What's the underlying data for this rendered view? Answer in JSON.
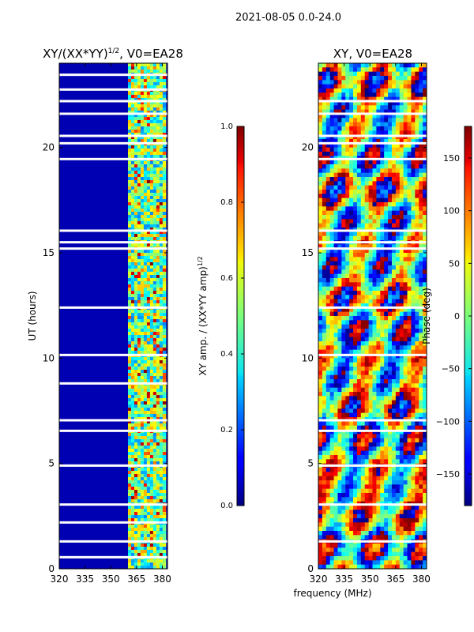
{
  "suptitle": "2021-08-05 0.0-24.0",
  "shared_xlabel": "frequency (MHz)",
  "chart_data": [
    {
      "type": "heatmap",
      "title": "XY/(XX*YY)",
      "title_superscript": "1/2",
      "title_suffix": ", V0=EA28",
      "xlabel": "",
      "ylabel": "UT (hours)",
      "xlim": [
        320,
        383
      ],
      "ylim": [
        0,
        24
      ],
      "xticks": [
        320,
        335,
        350,
        365,
        380
      ],
      "yticks": [
        0,
        5,
        10,
        15,
        20
      ],
      "colormap": "jet",
      "band_frequency_range_mhz": [
        360,
        382
      ],
      "blank_time_rows_ut": [
        0.55,
        1.3,
        2.2,
        3.05,
        4.9,
        6.55,
        7.05,
        8.8,
        10.15,
        12.4,
        15.2,
        15.5,
        16.05,
        19.45,
        20.2,
        20.55,
        21.6,
        22.2,
        22.75,
        23.45
      ],
      "colorbar": {
        "label": "XY amp. / (XX*YY amp)",
        "label_superscript": "1/2",
        "vmin": 0.0,
        "vmax": 1.0,
        "ticks": [
          "0.0",
          "0.2",
          "0.4",
          "0.6",
          "0.8",
          "1.0"
        ]
      }
    },
    {
      "type": "heatmap",
      "title": "XY, V0=EA28",
      "xlabel": "frequency (MHz)",
      "ylabel": "",
      "xlim": [
        320,
        383
      ],
      "ylim": [
        0,
        24
      ],
      "xticks": [
        320,
        335,
        350,
        365,
        380
      ],
      "yticks": [
        0,
        5,
        10,
        15,
        20
      ],
      "colormap": "jet",
      "blank_time_rows_ut": [
        1.3,
        3.05,
        4.9,
        6.55,
        7.05,
        10.15,
        12.4,
        15.2,
        15.5,
        16.05,
        19.45,
        20.2,
        20.55,
        21.6,
        22.2
      ],
      "colorbar": {
        "label": "Phase (deg)",
        "vmin": -180,
        "vmax": 180,
        "ticks": [
          "150",
          "100",
          "50",
          "0",
          "−50",
          "−100",
          "−150"
        ],
        "tick_values": [
          150,
          100,
          50,
          0,
          -50,
          -100,
          -150
        ]
      }
    }
  ]
}
